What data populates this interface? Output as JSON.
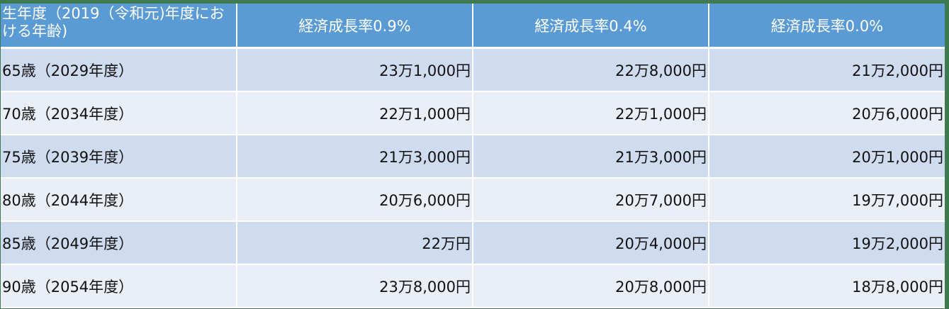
{
  "table": {
    "headers": [
      "生年度（2019（令和元)年度における年齢)",
      "経済成長率0.9%",
      "経済成長率0.4%",
      "経済成長率0.0%"
    ],
    "rows": [
      [
        "65歳（2029年度）",
        "23万1,000円",
        "22万8,000円",
        "21万2,000円"
      ],
      [
        "70歳（2034年度）",
        "22万1,000円",
        "22万1,000円",
        "20万6,000円"
      ],
      [
        "75歳（2039年度）",
        "21万3,000円",
        "21万3,000円",
        "20万1,000円"
      ],
      [
        "80歳（2044年度）",
        "20万6,000円",
        "20万7,000円",
        "19万7,000円"
      ],
      [
        "85歳（2049年度）",
        "22万円",
        "20万4,000円",
        "19万2,000円"
      ],
      [
        "90歳（2054年度）",
        "23万8,000円",
        "20万8,000円",
        "18万8,000円"
      ]
    ]
  },
  "colors": {
    "header_bg": "#5b9bd5",
    "row_odd": "#cfdbee",
    "row_even": "#e9eef7",
    "frame": "#3e7a4f"
  }
}
